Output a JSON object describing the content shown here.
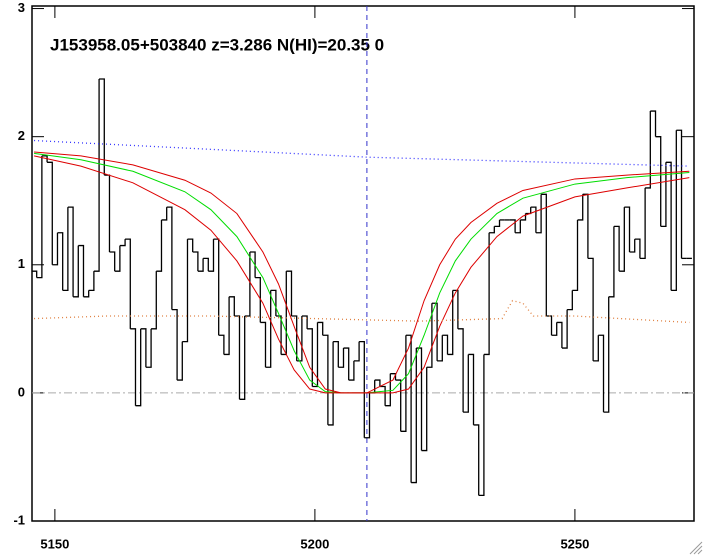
{
  "chart_data": {
    "type": "spectrum",
    "title": "J153958.05+503840 z=3.286 N(HI)=20.35 0",
    "xlim": [
      5145.6,
      5272.9
    ],
    "ylim": [
      -1.0,
      3.02
    ],
    "xticks": [
      5150,
      5200,
      5250
    ],
    "yticks": [
      -1,
      0,
      1,
      2,
      3
    ],
    "hline": 0,
    "vline": 5210,
    "series": [
      {
        "color": "#000000",
        "style": "step",
        "x": [
          5146,
          5147,
          5148,
          5149,
          5150,
          5151,
          5152,
          5153,
          5154,
          5155,
          5156,
          5157,
          5158,
          5159,
          5160,
          5161,
          5162,
          5163,
          5164,
          5165,
          5166,
          5167,
          5168,
          5169,
          5170,
          5171,
          5172,
          5173,
          5174,
          5175,
          5176,
          5177,
          5178,
          5179,
          5180,
          5181,
          5182,
          5183,
          5184,
          5185,
          5186,
          5187,
          5188,
          5189,
          5190,
          5191,
          5192,
          5193,
          5194,
          5195,
          5196,
          5197,
          5198,
          5199,
          5200,
          5201,
          5202,
          5203,
          5204,
          5205,
          5206,
          5207,
          5208,
          5209,
          5210,
          5211,
          5212,
          5213,
          5214,
          5215,
          5216,
          5217,
          5218,
          5219,
          5220,
          5221,
          5222,
          5223,
          5224,
          5225,
          5226,
          5227,
          5228,
          5229,
          5230,
          5231,
          5232,
          5233,
          5234,
          5235,
          5236,
          5237,
          5238,
          5239,
          5240,
          5241,
          5242,
          5243,
          5244,
          5245,
          5246,
          5247,
          5248,
          5249,
          5250,
          5251,
          5252,
          5253,
          5254,
          5255,
          5256,
          5257,
          5258,
          5259,
          5260,
          5261,
          5262,
          5263,
          5264,
          5265,
          5266,
          5267,
          5268,
          5269,
          5270,
          5271,
          5272
        ],
        "values": [
          0.95,
          0.9,
          1.85,
          1.8,
          1.0,
          1.25,
          0.8,
          1.45,
          0.75,
          1.15,
          0.75,
          0.8,
          0.95,
          2.45,
          1.7,
          1.1,
          0.95,
          1.15,
          1.2,
          0.5,
          -0.1,
          0.5,
          0.2,
          0.5,
          0.95,
          1.35,
          1.45,
          0.65,
          0.1,
          0.4,
          1.2,
          1.1,
          0.95,
          1.05,
          0.95,
          1.2,
          0.45,
          0.3,
          0.75,
          0.6,
          -0.05,
          0.6,
          1.1,
          0.9,
          0.55,
          0.2,
          0.8,
          0.6,
          0.3,
          0.95,
          0.6,
          0.25,
          0.6,
          0.5,
          0.05,
          0.55,
          0.45,
          -0.25,
          0.4,
          0.2,
          0.35,
          0.1,
          0.25,
          0.4,
          -0.35,
          0.0,
          0.1,
          0.05,
          -0.1,
          0.15,
          0.1,
          -0.3,
          0.45,
          -0.7,
          0.35,
          -0.45,
          0.2,
          0.7,
          0.25,
          0.45,
          0.3,
          0.8,
          0.5,
          -0.15,
          0.3,
          -0.25,
          -0.8,
          0.3,
          1.25,
          1.3,
          1.35,
          1.35,
          1.35,
          1.25,
          1.35,
          1.4,
          1.45,
          1.25,
          1.55,
          0.6,
          0.45,
          0.55,
          0.35,
          0.65,
          0.8,
          1.35,
          1.55,
          1.05,
          0.25,
          0.45,
          -0.15,
          0.75,
          1.3,
          0.95,
          1.45,
          1.1,
          1.2,
          1.05,
          1.6,
          2.2,
          2.0,
          1.3,
          1.8,
          0.8,
          2.05,
          1.05,
          1.05
        ]
      },
      {
        "color": "#00dd00",
        "style": "solid",
        "x": [
          5146,
          5155,
          5165,
          5175,
          5180,
          5185,
          5190,
          5193,
          5196,
          5199,
          5202,
          5205,
          5210,
          5215,
          5218,
          5221,
          5224,
          5227,
          5230,
          5235,
          5240,
          5250,
          5260,
          5272
        ],
        "values": [
          1.87,
          1.82,
          1.73,
          1.57,
          1.43,
          1.22,
          0.9,
          0.62,
          0.33,
          0.1,
          0.01,
          0,
          0,
          0.02,
          0.15,
          0.45,
          0.78,
          1.03,
          1.2,
          1.4,
          1.52,
          1.63,
          1.68,
          1.72
        ]
      },
      {
        "color": "#dd0000",
        "style": "solid",
        "x": [
          5146,
          5155,
          5165,
          5175,
          5180,
          5185,
          5190,
          5193,
          5196,
          5199,
          5202,
          5205,
          5210,
          5215,
          5218,
          5221,
          5224,
          5227,
          5230,
          5235,
          5240,
          5250,
          5260,
          5272
        ],
        "values": [
          1.88,
          1.85,
          1.78,
          1.66,
          1.56,
          1.4,
          1.1,
          0.85,
          0.52,
          0.2,
          0.03,
          0,
          0,
          0.1,
          0.35,
          0.72,
          1.0,
          1.2,
          1.33,
          1.48,
          1.58,
          1.67,
          1.7,
          1.73
        ]
      },
      {
        "color": "#dd0000",
        "style": "solid",
        "x": [
          5146,
          5155,
          5165,
          5175,
          5180,
          5185,
          5190,
          5193,
          5196,
          5199,
          5202,
          5205,
          5210,
          5215,
          5218,
          5221,
          5224,
          5227,
          5230,
          5235,
          5240,
          5250,
          5260,
          5272
        ],
        "values": [
          1.85,
          1.77,
          1.64,
          1.43,
          1.27,
          1.03,
          0.7,
          0.42,
          0.18,
          0.03,
          0,
          0,
          0,
          0,
          0.03,
          0.2,
          0.52,
          0.78,
          0.98,
          1.22,
          1.38,
          1.53,
          1.6,
          1.68
        ]
      },
      {
        "color": "#3333ff",
        "style": "dotted",
        "x": [
          5146,
          5210,
          5272
        ],
        "values": [
          1.97,
          1.84,
          1.77
        ]
      },
      {
        "color": "#e08040",
        "style": "dotted",
        "x": [
          5146,
          5160,
          5180,
          5200,
          5220,
          5236,
          5238,
          5240,
          5242,
          5250,
          5272
        ],
        "values": [
          0.58,
          0.6,
          0.6,
          0.58,
          0.56,
          0.58,
          0.72,
          0.7,
          0.6,
          0.6,
          0.55
        ]
      }
    ]
  }
}
